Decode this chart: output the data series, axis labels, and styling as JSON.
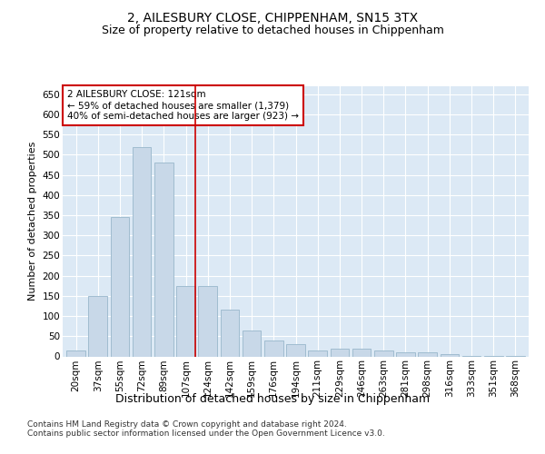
{
  "title": "2, AILESBURY CLOSE, CHIPPENHAM, SN15 3TX",
  "subtitle": "Size of property relative to detached houses in Chippenham",
  "xlabel": "Distribution of detached houses by size in Chippenham",
  "ylabel": "Number of detached properties",
  "categories": [
    "20sqm",
    "37sqm",
    "55sqm",
    "72sqm",
    "89sqm",
    "107sqm",
    "124sqm",
    "142sqm",
    "159sqm",
    "176sqm",
    "194sqm",
    "211sqm",
    "229sqm",
    "246sqm",
    "263sqm",
    "281sqm",
    "298sqm",
    "316sqm",
    "333sqm",
    "351sqm",
    "368sqm"
  ],
  "values": [
    15,
    150,
    345,
    520,
    480,
    175,
    175,
    115,
    65,
    40,
    30,
    15,
    20,
    20,
    15,
    10,
    10,
    5,
    2,
    2,
    2
  ],
  "bar_color": "#c8d8e8",
  "bar_edge_color": "#a0bcd0",
  "bar_linewidth": 0.7,
  "vline_x": 5.42,
  "vline_color": "#cc0000",
  "annotation_text": "2 AILESBURY CLOSE: 121sqm\n← 59% of detached houses are smaller (1,379)\n40% of semi-detached houses are larger (923) →",
  "annotation_box_color": "#ffffff",
  "annotation_box_edge": "#cc0000",
  "ylim": [
    0,
    670
  ],
  "yticks": [
    0,
    50,
    100,
    150,
    200,
    250,
    300,
    350,
    400,
    450,
    500,
    550,
    600,
    650
  ],
  "footer": "Contains HM Land Registry data © Crown copyright and database right 2024.\nContains public sector information licensed under the Open Government Licence v3.0.",
  "background_color": "#dce9f5",
  "fig_background": "#ffffff",
  "title_fontsize": 10,
  "subtitle_fontsize": 9,
  "xlabel_fontsize": 9,
  "ylabel_fontsize": 8,
  "tick_fontsize": 7.5,
  "footer_fontsize": 6.5,
  "ann_fontsize": 7.5
}
